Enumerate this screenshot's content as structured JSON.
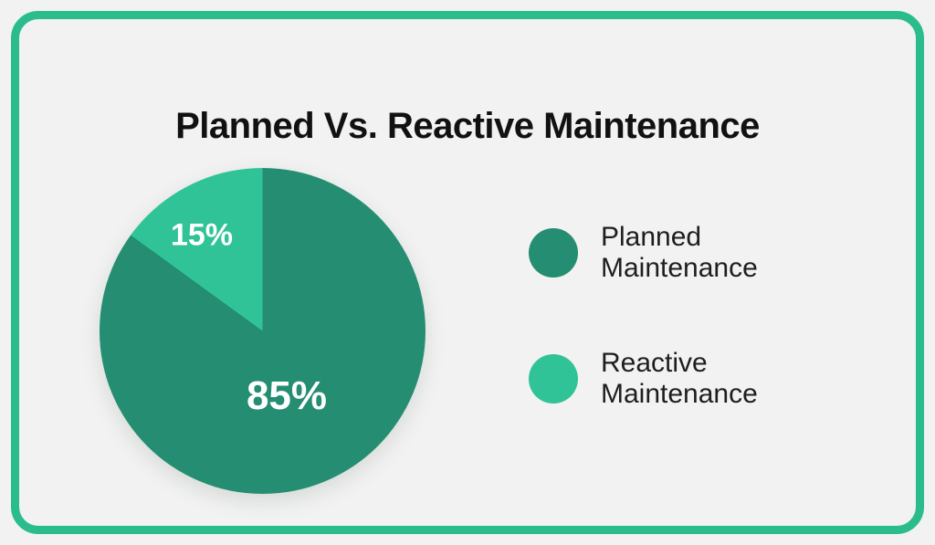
{
  "card": {
    "border_color": "#2BBC8E",
    "background_color": "#F1F2F1"
  },
  "title": "Planned Vs. Reactive Maintenance",
  "chart_data": {
    "type": "pie",
    "title": "Planned Vs. Reactive Maintenance",
    "start_angle_deg": 0,
    "direction": "clockwise",
    "legend_position": "right",
    "slices": [
      {
        "label": "Planned Maintenance",
        "value": 85,
        "display": "85%",
        "color": "#258D71"
      },
      {
        "label": "Reactive Maintenance",
        "value": 15,
        "display": "15%",
        "color": "#30C397"
      }
    ]
  },
  "legend": {
    "items": [
      {
        "label": "Planned Maintenance",
        "color": "#258D71"
      },
      {
        "label": "Reactive Maintenance",
        "color": "#30C397"
      }
    ]
  }
}
